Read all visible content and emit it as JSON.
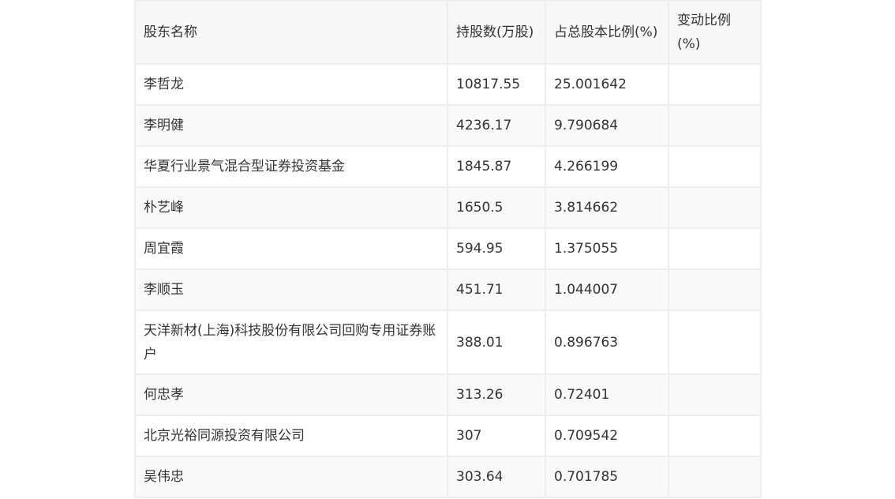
{
  "table": {
    "headers": [
      "股东名称",
      "持股数(万股)",
      "占总股本比例(%)",
      "变动比例(%)"
    ],
    "rows": [
      {
        "name": "李哲龙",
        "shares": "10817.55",
        "ratio": "25.001642",
        "change": ""
      },
      {
        "name": "李明健",
        "shares": "4236.17",
        "ratio": "9.790684",
        "change": ""
      },
      {
        "name": "华夏行业景气混合型证券投资基金",
        "shares": "1845.87",
        "ratio": "4.266199",
        "change": ""
      },
      {
        "name": "朴艺峰",
        "shares": "1650.5",
        "ratio": "3.814662",
        "change": ""
      },
      {
        "name": "周宜霞",
        "shares": "594.95",
        "ratio": "1.375055",
        "change": ""
      },
      {
        "name": "李顺玉",
        "shares": "451.71",
        "ratio": "1.044007",
        "change": ""
      },
      {
        "name": "天洋新材(上海)科技股份有限公司回购专用证券账户",
        "shares": "388.01",
        "ratio": "0.896763",
        "change": ""
      },
      {
        "name": "何忠孝",
        "shares": "313.26",
        "ratio": "0.72401",
        "change": ""
      },
      {
        "name": "北京光裕同源投资有限公司",
        "shares": "307",
        "ratio": "0.709542",
        "change": ""
      },
      {
        "name": "吴伟忠",
        "shares": "303.64",
        "ratio": "0.701785",
        "change": ""
      }
    ]
  }
}
